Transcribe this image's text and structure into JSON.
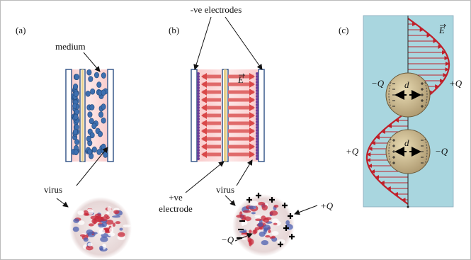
{
  "panel_a": {
    "label": "(a)",
    "medium_label": "medium",
    "virus_label": "virus"
  },
  "panel_b": {
    "label": "(b)",
    "electrodes_label": "-ve electrodes",
    "field_label": "E",
    "positive_electrode_label": [
      "+ve",
      "electrode"
    ],
    "virus_label": "virus",
    "plus_charge": "+Q",
    "minus_charge": "−Q"
  },
  "panel_c": {
    "label": "(c)",
    "field_label": "E",
    "top_particle": {
      "left_charge": "−Q",
      "right_charge": "+Q",
      "diameter": "d"
    },
    "bottom_particle": {
      "left_charge": "+Q",
      "right_charge": "−Q",
      "diameter": "d"
    }
  }
}
